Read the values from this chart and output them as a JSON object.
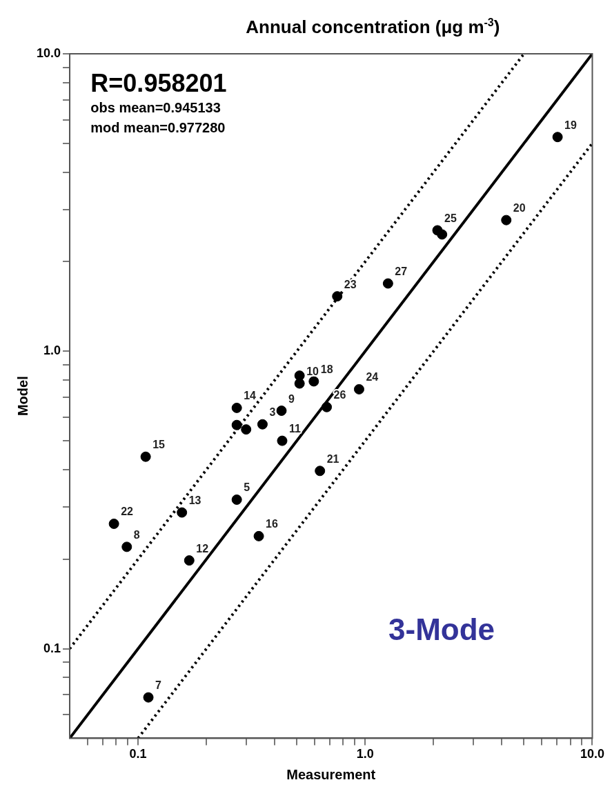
{
  "chart_data": {
    "type": "scatter",
    "title": "Annual concentration (μg m$^{-3}$)",
    "xlabel": "Measurement",
    "ylabel": "Model",
    "log": "xy",
    "grid": false,
    "legend": false,
    "marker": "circle",
    "xlim": [
      0.05,
      10
    ],
    "ylim": [
      0.05,
      10
    ],
    "xticks": [
      {
        "value": 0.06,
        "label": null
      },
      {
        "value": 0.07,
        "label": null
      },
      {
        "value": 0.08,
        "label": null
      },
      {
        "value": 0.09,
        "label": null
      },
      {
        "value": 0.1,
        "label": "0.1"
      },
      {
        "value": 0.2,
        "label": null
      },
      {
        "value": 0.3,
        "label": null
      },
      {
        "value": 0.4,
        "label": null
      },
      {
        "value": 0.5,
        "label": null
      },
      {
        "value": 0.6,
        "label": null
      },
      {
        "value": 0.7,
        "label": null
      },
      {
        "value": 0.8,
        "label": null
      },
      {
        "value": 0.9,
        "label": null
      },
      {
        "value": 1,
        "label": "1.0"
      },
      {
        "value": 2,
        "label": null
      },
      {
        "value": 3,
        "label": null
      },
      {
        "value": 4,
        "label": null
      },
      {
        "value": 5,
        "label": null
      },
      {
        "value": 6,
        "label": null
      },
      {
        "value": 7,
        "label": null
      },
      {
        "value": 8,
        "label": null
      },
      {
        "value": 9,
        "label": null
      },
      {
        "value": 10,
        "label": "10.0"
      }
    ],
    "yticks": [
      {
        "value": 0.06,
        "label": null
      },
      {
        "value": 0.07,
        "label": null
      },
      {
        "value": 0.08,
        "label": null
      },
      {
        "value": 0.09,
        "label": null
      },
      {
        "value": 0.1,
        "label": "0.1"
      },
      {
        "value": 0.2,
        "label": null
      },
      {
        "value": 0.3,
        "label": null
      },
      {
        "value": 0.4,
        "label": null
      },
      {
        "value": 0.5,
        "label": null
      },
      {
        "value": 0.6,
        "label": null
      },
      {
        "value": 0.7,
        "label": null
      },
      {
        "value": 0.8,
        "label": null
      },
      {
        "value": 0.9,
        "label": null
      },
      {
        "value": 1,
        "label": "1.0"
      },
      {
        "value": 2,
        "label": null
      },
      {
        "value": 3,
        "label": null
      },
      {
        "value": 4,
        "label": null
      },
      {
        "value": 5,
        "label": null
      },
      {
        "value": 6,
        "label": null
      },
      {
        "value": 7,
        "label": null
      },
      {
        "value": 8,
        "label": null
      },
      {
        "value": 9,
        "label": null
      },
      {
        "value": 10,
        "label": "10.0"
      }
    ],
    "series": [
      {
        "type": "line",
        "color": "#000000",
        "line_style": "solid",
        "marker": "none",
        "x": [
          0.05,
          10
        ],
        "values": [
          0.05,
          10
        ]
      },
      {
        "type": "line",
        "color": "#000000",
        "line_style": "dotted",
        "marker": "none",
        "x": [
          0.05,
          5
        ],
        "values": [
          0.1,
          10
        ]
      },
      {
        "type": "line",
        "color": "#000000",
        "line_style": "dotted",
        "marker": "none",
        "x": [
          0.1,
          10
        ],
        "values": [
          0.05,
          5
        ]
      },
      {
        "type": "scatter",
        "color": "#000000",
        "x": [
          7.03,
          4.18,
          2.08,
          2.18,
          1.26,
          0.753,
          0.514,
          0.514,
          0.594,
          0.94,
          0.677,
          0.272,
          0.428,
          0.272,
          0.299,
          0.353,
          0.431,
          0.108,
          0.632,
          0.272,
          0.156,
          0.0783,
          0.0892,
          0.34,
          0.168,
          0.111
        ],
        "values": [
          5.25,
          2.76,
          2.55,
          2.47,
          1.69,
          1.53,
          0.828,
          0.779,
          0.792,
          0.745,
          0.649,
          0.645,
          0.631,
          0.565,
          0.546,
          0.568,
          0.5,
          0.442,
          0.396,
          0.317,
          0.287,
          0.263,
          0.22,
          0.239,
          0.198,
          0.0686
        ]
      }
    ],
    "annotations": [
      "R=0.958201",
      "obs mean=0.945133",
      "mod mean=0.977280",
      "3-Mode",
      {
        "text": "19",
        "x": 7.03,
        "y": 5.25
      },
      {
        "text": "20",
        "x": 4.18,
        "y": 2.76
      },
      {
        "text": "25",
        "x": 2.08,
        "y": 2.55
      },
      {
        "text": "27",
        "x": 1.26,
        "y": 1.69
      },
      {
        "text": "23",
        "x": 0.753,
        "y": 1.53
      },
      {
        "text": "10",
        "x": 0.514,
        "y": 0.779
      },
      {
        "text": "18",
        "x": 0.594,
        "y": 0.792
      },
      {
        "text": "24",
        "x": 0.94,
        "y": 0.745
      },
      {
        "text": "26",
        "x": 0.677,
        "y": 0.649
      },
      {
        "text": "14",
        "x": 0.272,
        "y": 0.645
      },
      {
        "text": "9",
        "x": 0.428,
        "y": 0.631
      },
      {
        "text": "3",
        "x": 0.353,
        "y": 0.568
      },
      {
        "text": "11",
        "x": 0.431,
        "y": 0.5
      },
      {
        "text": "15",
        "x": 0.108,
        "y": 0.442
      },
      {
        "text": "21",
        "x": 0.632,
        "y": 0.396
      },
      {
        "text": "5",
        "x": 0.272,
        "y": 0.317
      },
      {
        "text": "13",
        "x": 0.156,
        "y": 0.287
      },
      {
        "text": "22",
        "x": 0.0783,
        "y": 0.263
      },
      {
        "text": "8",
        "x": 0.0892,
        "y": 0.22
      },
      {
        "text": "16",
        "x": 0.34,
        "y": 0.239
      },
      {
        "text": "12",
        "x": 0.168,
        "y": 0.198
      },
      {
        "text": "7",
        "x": 0.111,
        "y": 0.0686
      }
    ]
  }
}
